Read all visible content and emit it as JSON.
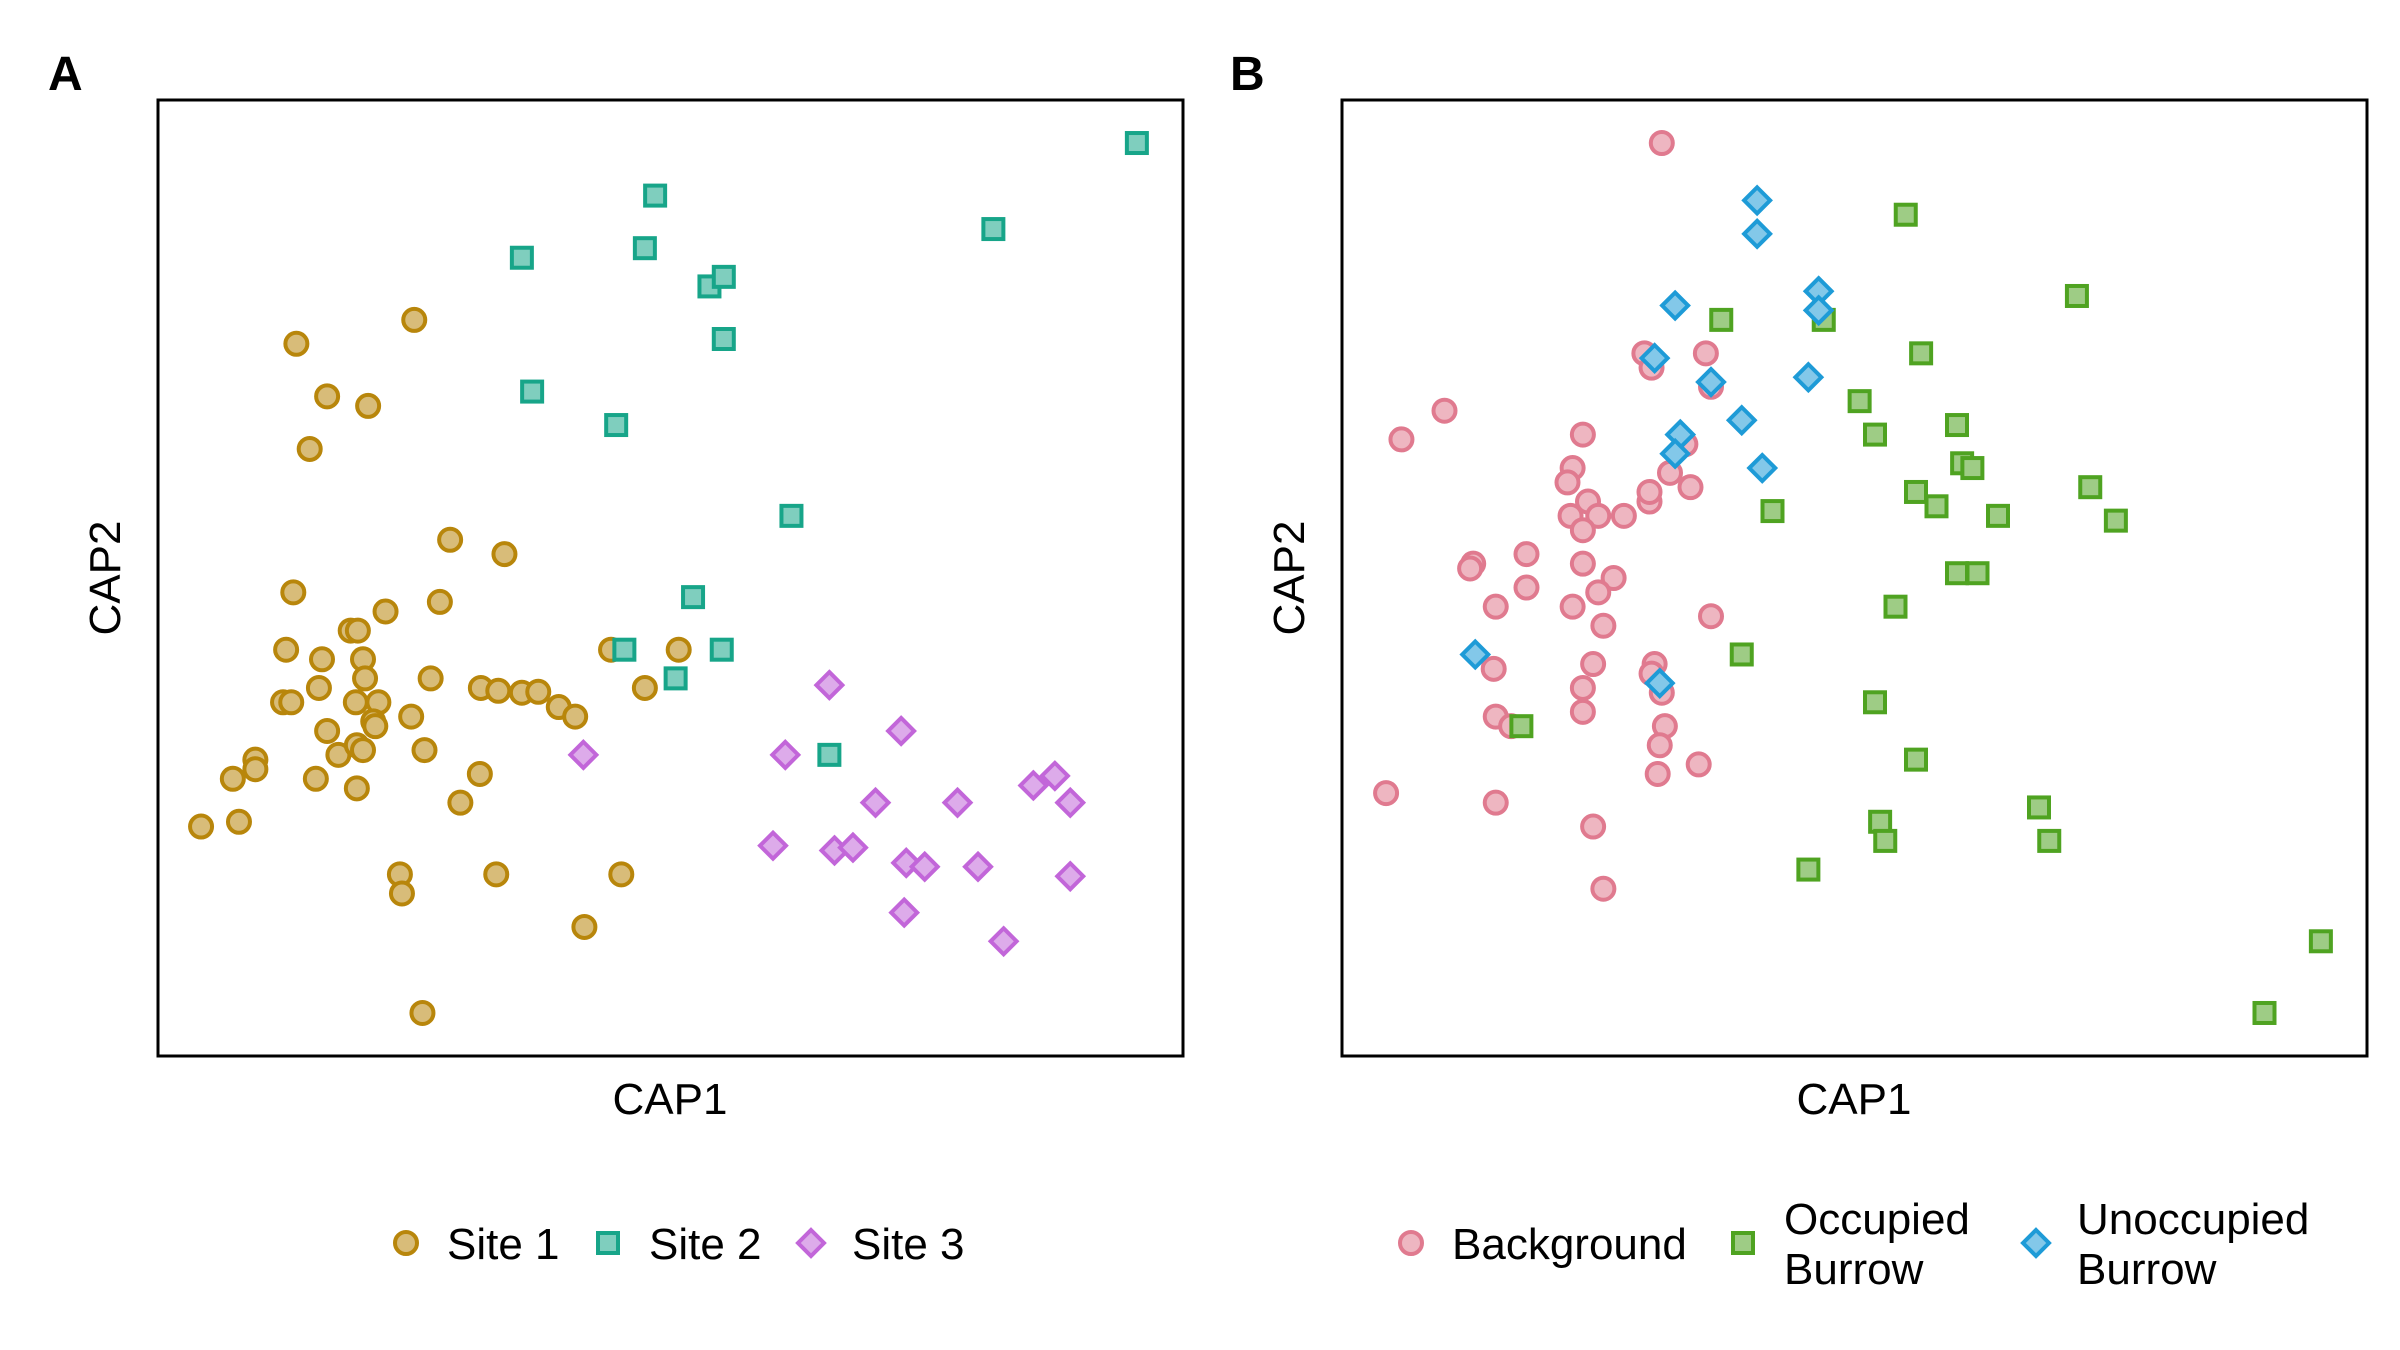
{
  "chart_data": [
    {
      "type": "scatter",
      "panel_label": "A",
      "xlabel": "CAP1",
      "ylabel": "CAP2",
      "grid": false,
      "legend_position": "bottom",
      "xlim": [
        0,
        100
      ],
      "ylim": [
        0,
        100
      ],
      "series": [
        {
          "name": "Site 1",
          "color": "#B8860B",
          "marker": "circle",
          "points": [
            [
              25,
              77
            ],
            [
              13.5,
              74.5
            ],
            [
              16.5,
              69
            ],
            [
              20.5,
              68
            ],
            [
              14.8,
              63.5
            ],
            [
              28.5,
              54
            ],
            [
              33.8,
              52.5
            ],
            [
              13.2,
              48.5
            ],
            [
              27.5,
              47.5
            ],
            [
              22.2,
              46.5
            ],
            [
              18.8,
              44.5
            ],
            [
              19.5,
              44.5
            ],
            [
              12.5,
              42.5
            ],
            [
              16,
              41.5
            ],
            [
              20,
              41.5
            ],
            [
              26.6,
              39.5
            ],
            [
              15.7,
              38.5
            ],
            [
              20.2,
              39.5
            ],
            [
              31.5,
              38.5
            ],
            [
              33.2,
              38.2
            ],
            [
              35.5,
              38
            ],
            [
              37.1,
              38.1
            ],
            [
              44.2,
              42.5
            ],
            [
              50.8,
              42.5
            ],
            [
              47.5,
              38.5
            ],
            [
              12.2,
              37
            ],
            [
              13,
              37
            ],
            [
              19.3,
              37
            ],
            [
              21.5,
              37
            ],
            [
              21,
              35
            ],
            [
              24.7,
              35.5
            ],
            [
              39.1,
              36.5
            ],
            [
              40.7,
              35.5
            ],
            [
              16.5,
              34
            ],
            [
              21.2,
              34.5
            ],
            [
              17.6,
              31.5
            ],
            [
              19.4,
              32.5
            ],
            [
              20,
              32
            ],
            [
              26,
              32
            ],
            [
              9.5,
              31
            ],
            [
              9.5,
              30
            ],
            [
              7.3,
              29
            ],
            [
              15.4,
              29
            ],
            [
              31.4,
              29.5
            ],
            [
              19.4,
              28
            ],
            [
              29.5,
              26.5
            ],
            [
              4.2,
              24
            ],
            [
              7.9,
              24.5
            ],
            [
              23.6,
              19
            ],
            [
              33,
              19
            ],
            [
              45.2,
              19
            ],
            [
              23.8,
              17
            ],
            [
              41.6,
              13.5
            ],
            [
              25.8,
              4.5
            ]
          ]
        },
        {
          "name": "Site 2",
          "color": "#17A589",
          "marker": "square",
          "points": [
            [
              95.5,
              95.5
            ],
            [
              48.5,
              90
            ],
            [
              81.5,
              86.5
            ],
            [
              35.5,
              83.5
            ],
            [
              47.5,
              84.5
            ],
            [
              53.8,
              80.5
            ],
            [
              55.2,
              81.5
            ],
            [
              55.2,
              75
            ],
            [
              36.5,
              69.5
            ],
            [
              44.7,
              66
            ],
            [
              61.8,
              56.5
            ],
            [
              52.2,
              48
            ],
            [
              45.5,
              42.5
            ],
            [
              55,
              42.5
            ],
            [
              50.5,
              39.5
            ],
            [
              65.5,
              31.5
            ]
          ]
        },
        {
          "name": "Site 3",
          "color": "#C266D9",
          "marker": "diamond",
          "points": [
            [
              65.5,
              38.8
            ],
            [
              41.5,
              31.5
            ],
            [
              61.2,
              31.5
            ],
            [
              72.5,
              34
            ],
            [
              87.5,
              29.3
            ],
            [
              85.4,
              28.3
            ],
            [
              70,
              26.5
            ],
            [
              78,
              26.5
            ],
            [
              89,
              26.5
            ],
            [
              60,
              22
            ],
            [
              66,
              21.5
            ],
            [
              67.8,
              21.8
            ],
            [
              73,
              20.2
            ],
            [
              74.8,
              19.8
            ],
            [
              80,
              19.8
            ],
            [
              89,
              18.8
            ],
            [
              72.8,
              15
            ],
            [
              82.5,
              12
            ]
          ]
        }
      ]
    },
    {
      "type": "scatter",
      "panel_label": "B",
      "xlabel": "CAP1",
      "ylabel": "CAP2",
      "grid": false,
      "legend_position": "bottom",
      "xlim": [
        0,
        100
      ],
      "ylim": [
        0,
        100
      ],
      "series": [
        {
          "name": "Background",
          "color": "#E07A8F",
          "marker": "circle",
          "points": [
            [
              31.2,
              95.5
            ],
            [
              10,
              67.5
            ],
            [
              5.8,
              64.5
            ],
            [
              23.5,
              65
            ],
            [
              22.5,
              61.5
            ],
            [
              22,
              60
            ],
            [
              24,
              58
            ],
            [
              34,
              59.5
            ],
            [
              30,
              58
            ],
            [
              25,
              56.5
            ],
            [
              22.3,
              56.5
            ],
            [
              27.5,
              56.5
            ],
            [
              23.5,
              55
            ],
            [
              36,
              70
            ],
            [
              29.5,
              73.5
            ],
            [
              30.2,
              72
            ],
            [
              35.5,
              73.5
            ],
            [
              33.5,
              64
            ],
            [
              32,
              61
            ],
            [
              30,
              59
            ],
            [
              18,
              52.5
            ],
            [
              12.8,
              51.5
            ],
            [
              12.5,
              51
            ],
            [
              23.5,
              51.5
            ],
            [
              26.5,
              50
            ],
            [
              18,
              49
            ],
            [
              25,
              48.5
            ],
            [
              15,
              47
            ],
            [
              22.5,
              47
            ],
            [
              25.5,
              45
            ],
            [
              36,
              46
            ],
            [
              14.8,
              40.5
            ],
            [
              24.5,
              41
            ],
            [
              30.5,
              41
            ],
            [
              30.2,
              40
            ],
            [
              23.5,
              38.5
            ],
            [
              31.2,
              38
            ],
            [
              15,
              35.5
            ],
            [
              16.5,
              34.5
            ],
            [
              23.5,
              36
            ],
            [
              31.5,
              34.5
            ],
            [
              31,
              32.5
            ],
            [
              34.8,
              30.5
            ],
            [
              30.8,
              29.5
            ],
            [
              4.3,
              27.5
            ],
            [
              15,
              26.5
            ],
            [
              24.5,
              24
            ],
            [
              25.5,
              17.5
            ]
          ]
        },
        {
          "name": "Occupied Burrow",
          "color": "#4FA321",
          "marker": "square",
          "points": [
            [
              55,
              88
            ],
            [
              71.7,
              79.5
            ],
            [
              37,
              77
            ],
            [
              47,
              77
            ],
            [
              56.5,
              73.5
            ],
            [
              50.5,
              68.5
            ],
            [
              60,
              66
            ],
            [
              52,
              65
            ],
            [
              60.5,
              62
            ],
            [
              61.5,
              61.5
            ],
            [
              42,
              57
            ],
            [
              56,
              59
            ],
            [
              64,
              56.5
            ],
            [
              73,
              59.5
            ],
            [
              75.5,
              56
            ],
            [
              58,
              57.5
            ],
            [
              60,
              50.5
            ],
            [
              62,
              50.5
            ],
            [
              54,
              47
            ],
            [
              39,
              42
            ],
            [
              52,
              37
            ],
            [
              17.5,
              34.5
            ],
            [
              56,
              31
            ],
            [
              68,
              26
            ],
            [
              69,
              22.5
            ],
            [
              52.5,
              24.5
            ],
            [
              53,
              22.5
            ],
            [
              45.5,
              19.5
            ],
            [
              95.5,
              12
            ],
            [
              90,
              4.5
            ]
          ]
        },
        {
          "name": "Unoccupied Burrow",
          "color": "#1E9BD7",
          "marker": "diamond",
          "points": [
            [
              40.5,
              89.5
            ],
            [
              40.5,
              86
            ],
            [
              46.5,
              80
            ],
            [
              32.5,
              78.5
            ],
            [
              46.5,
              78
            ],
            [
              30.5,
              73
            ],
            [
              36,
              70.5
            ],
            [
              45.5,
              71
            ],
            [
              39,
              66.5
            ],
            [
              33,
              65
            ],
            [
              32.5,
              63
            ],
            [
              41,
              61.5
            ],
            [
              13,
              42
            ],
            [
              31,
              39
            ]
          ]
        }
      ]
    }
  ]
}
